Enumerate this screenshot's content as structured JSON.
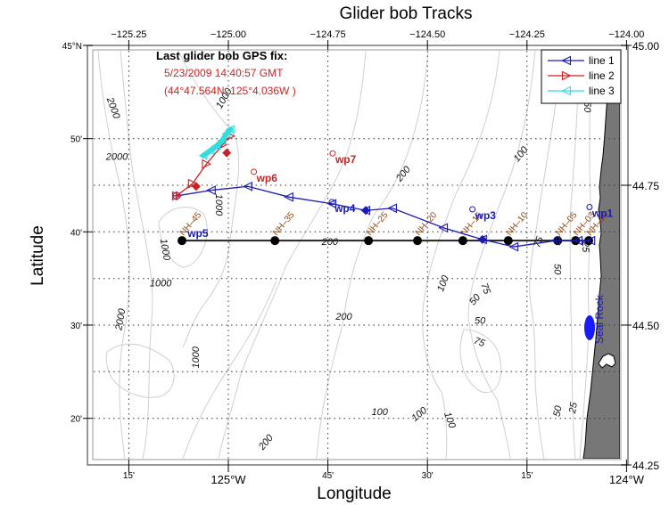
{
  "chart_data": {
    "type": "line",
    "title": "Glider bob Tracks",
    "xlabel": "Longitude",
    "ylabel": "Latitude",
    "xlim": [
      -125.333,
      -124.03
    ],
    "ylim": [
      44.25,
      45.0
    ],
    "grid": true,
    "top_ticks": [
      {
        "value": -125.25,
        "label": "−125.25"
      },
      {
        "value": -125.0,
        "label": "−125.00"
      },
      {
        "value": -124.75,
        "label": "−124.75"
      },
      {
        "value": -124.5,
        "label": "−124.50"
      },
      {
        "value": -124.25,
        "label": "−124.25"
      },
      {
        "value": -124.0,
        "label": "−124.00"
      }
    ],
    "bottom_ticks": [
      {
        "value": -125.25,
        "label": "15'"
      },
      {
        "value": -125.0,
        "label": "125°W"
      },
      {
        "value": -124.75,
        "label": "45'"
      },
      {
        "value": -124.5,
        "label": "30'"
      },
      {
        "value": -124.25,
        "label": "15'"
      },
      {
        "value": -124.0,
        "label": "124°W"
      }
    ],
    "left_ticks": [
      {
        "value": 45.0,
        "label": "45°N"
      },
      {
        "value": 44.8333,
        "label": "50'"
      },
      {
        "value": 44.6667,
        "label": "40'"
      },
      {
        "value": 44.5,
        "label": "30'"
      },
      {
        "value": 44.3333,
        "label": "20'"
      }
    ],
    "right_ticks": [
      {
        "value": 45.0,
        "label": "45.00"
      },
      {
        "value": 44.75,
        "label": "44.75"
      },
      {
        "value": 44.5,
        "label": "44.50"
      },
      {
        "value": 44.25,
        "label": "44.25"
      }
    ],
    "legend": {
      "position": "top-right",
      "entries": [
        {
          "name": "line 1",
          "color": "#1a1ab4",
          "marker": "triangle-left"
        },
        {
          "name": "line 2",
          "color": "#cc2222",
          "marker": "triangle-right"
        },
        {
          "name": "line 3",
          "color": "#33dddd",
          "marker": "triangle-left"
        }
      ]
    },
    "annotation": {
      "heading": "Last glider bob GPS fix:",
      "line1": "5/23/2009 14:40:57 GMT",
      "line2": "(44°47.564N, 125°4.036W )",
      "color": "#cc2222"
    },
    "series": [
      {
        "name": "line 1",
        "color": "#1a1ab4",
        "points": [
          [
            -125.13,
            44.731
          ],
          [
            -125.043,
            44.741
          ],
          [
            -124.951,
            44.748
          ],
          [
            -124.848,
            44.729
          ],
          [
            -124.74,
            44.717
          ],
          [
            -124.655,
            44.705
          ],
          [
            -124.588,
            44.709
          ],
          [
            -124.46,
            44.674
          ],
          [
            -124.362,
            44.653
          ],
          [
            -124.283,
            44.64
          ],
          [
            -124.178,
            44.651
          ],
          [
            -124.122,
            44.651
          ],
          [
            -124.09,
            44.651
          ]
        ],
        "diamonds": [
          [
            -124.655,
            44.705
          ],
          [
            -124.362,
            44.653
          ]
        ]
      },
      {
        "name": "line 2",
        "color": "#cc2222",
        "points": [
          [
            -125.13,
            44.731
          ],
          [
            -125.09,
            44.753
          ],
          [
            -125.055,
            44.788
          ],
          [
            -125.015,
            44.822
          ],
          [
            -124.995,
            44.838
          ]
        ],
        "diamonds": [
          [
            -125.081,
            44.748
          ],
          [
            -125.004,
            44.808
          ]
        ]
      },
      {
        "name": "line 3",
        "color": "#33dddd",
        "points": [
          [
            -125.063,
            44.803
          ],
          [
            -125.045,
            44.812
          ],
          [
            -125.03,
            44.82
          ],
          [
            -125.015,
            44.83
          ],
          [
            -125.005,
            44.842
          ],
          [
            -124.995,
            44.85
          ]
        ]
      }
    ],
    "stations": {
      "color": "#8b4513",
      "lat": 44.651,
      "items": [
        {
          "name": "NH–45",
          "lon": -125.1165
        },
        {
          "name": "NH–35",
          "lon": -124.883
        },
        {
          "name": "NH–25",
          "lon": -124.648
        },
        {
          "name": "NH–20",
          "lon": -124.525
        },
        {
          "name": "NH–15",
          "lon": -124.411
        },
        {
          "name": "NH–10",
          "lon": -124.297
        },
        {
          "name": "NH–05",
          "lon": -124.173
        },
        {
          "name": "NH–03",
          "lon": -124.128
        },
        {
          "name": "NH–01",
          "lon": -124.095
        }
      ]
    },
    "waypoints": [
      {
        "name": "wp1",
        "lon": -124.093,
        "lat": 44.711,
        "color": "#1a1ab4"
      },
      {
        "name": "wp3",
        "lon": -124.387,
        "lat": 44.707,
        "color": "#1a1ab4"
      },
      {
        "name": "wp4",
        "lon": -124.74,
        "lat": 44.72,
        "color": "#1a1ab4"
      },
      {
        "name": "wp5",
        "lon": -125.116,
        "lat": 44.651,
        "color": "#1a1ab4",
        "no_marker": true
      },
      {
        "name": "wp6",
        "lon": -124.936,
        "lat": 44.774,
        "color": "#cc2222"
      },
      {
        "name": "wp7",
        "lon": -124.738,
        "lat": 44.807,
        "color": "#cc2222"
      }
    ],
    "place_label": {
      "name": "Seal Rock",
      "lon": -124.09,
      "lat": 44.497,
      "color": "#1a1ab4"
    },
    "contour_labels": [
      {
        "text": "2000",
        "lon": -125.29,
        "lat": 44.888,
        "rot": 70
      },
      {
        "text": "2000",
        "lon": -125.28,
        "lat": 44.8,
        "rot": 0
      },
      {
        "text": "2000",
        "lon": -125.27,
        "lat": 44.51,
        "rot": -80
      },
      {
        "text": "1000",
        "lon": -125.01,
        "lat": 44.905,
        "rot": -60
      },
      {
        "text": "1000",
        "lon": -125.025,
        "lat": 44.715,
        "rot": 90
      },
      {
        "text": "1000",
        "lon": -125.16,
        "lat": 44.635,
        "rot": 80
      },
      {
        "text": "1000",
        "lon": -125.17,
        "lat": 44.574,
        "rot": 0
      },
      {
        "text": "1000",
        "lon": -125.08,
        "lat": 44.442,
        "rot": -90
      },
      {
        "text": "200",
        "lon": -124.745,
        "lat": 44.648,
        "rot": 0
      },
      {
        "text": "200",
        "lon": -124.71,
        "lat": 44.514,
        "rot": 0
      },
      {
        "text": "200",
        "lon": -124.56,
        "lat": 44.77,
        "rot": -50
      },
      {
        "text": "200",
        "lon": -124.905,
        "lat": 44.29,
        "rot": -50
      },
      {
        "text": "100",
        "lon": -124.265,
        "lat": 44.805,
        "rot": -50
      },
      {
        "text": "100",
        "lon": -124.46,
        "lat": 44.574,
        "rot": -70
      },
      {
        "text": "100",
        "lon": -124.62,
        "lat": 44.344,
        "rot": 0
      },
      {
        "text": "100",
        "lon": -124.52,
        "lat": 44.34,
        "rot": -40
      },
      {
        "text": "100",
        "lon": -124.445,
        "lat": 44.33,
        "rot": 70
      },
      {
        "text": "75",
        "lon": -124.22,
        "lat": 44.648,
        "rot": -70
      },
      {
        "text": "75",
        "lon": -124.355,
        "lat": 44.565,
        "rot": 70
      },
      {
        "text": "75",
        "lon": -124.37,
        "lat": 44.469,
        "rot": 20
      },
      {
        "text": "50",
        "lon": -124.38,
        "lat": 44.545,
        "rot": -50
      },
      {
        "text": "50",
        "lon": -124.368,
        "lat": 44.507,
        "rot": 0
      },
      {
        "text": "50",
        "lon": -124.175,
        "lat": 44.6,
        "rot": 90
      },
      {
        "text": "50",
        "lon": -124.172,
        "lat": 44.346,
        "rot": -80
      },
      {
        "text": "50",
        "lon": -124.1,
        "lat": 44.89,
        "rot": 90
      },
      {
        "text": "25",
        "lon": -124.133,
        "lat": 44.352,
        "rot": -80
      },
      {
        "text": "25",
        "lon": -124.104,
        "lat": 44.64,
        "rot": 90
      }
    ]
  }
}
